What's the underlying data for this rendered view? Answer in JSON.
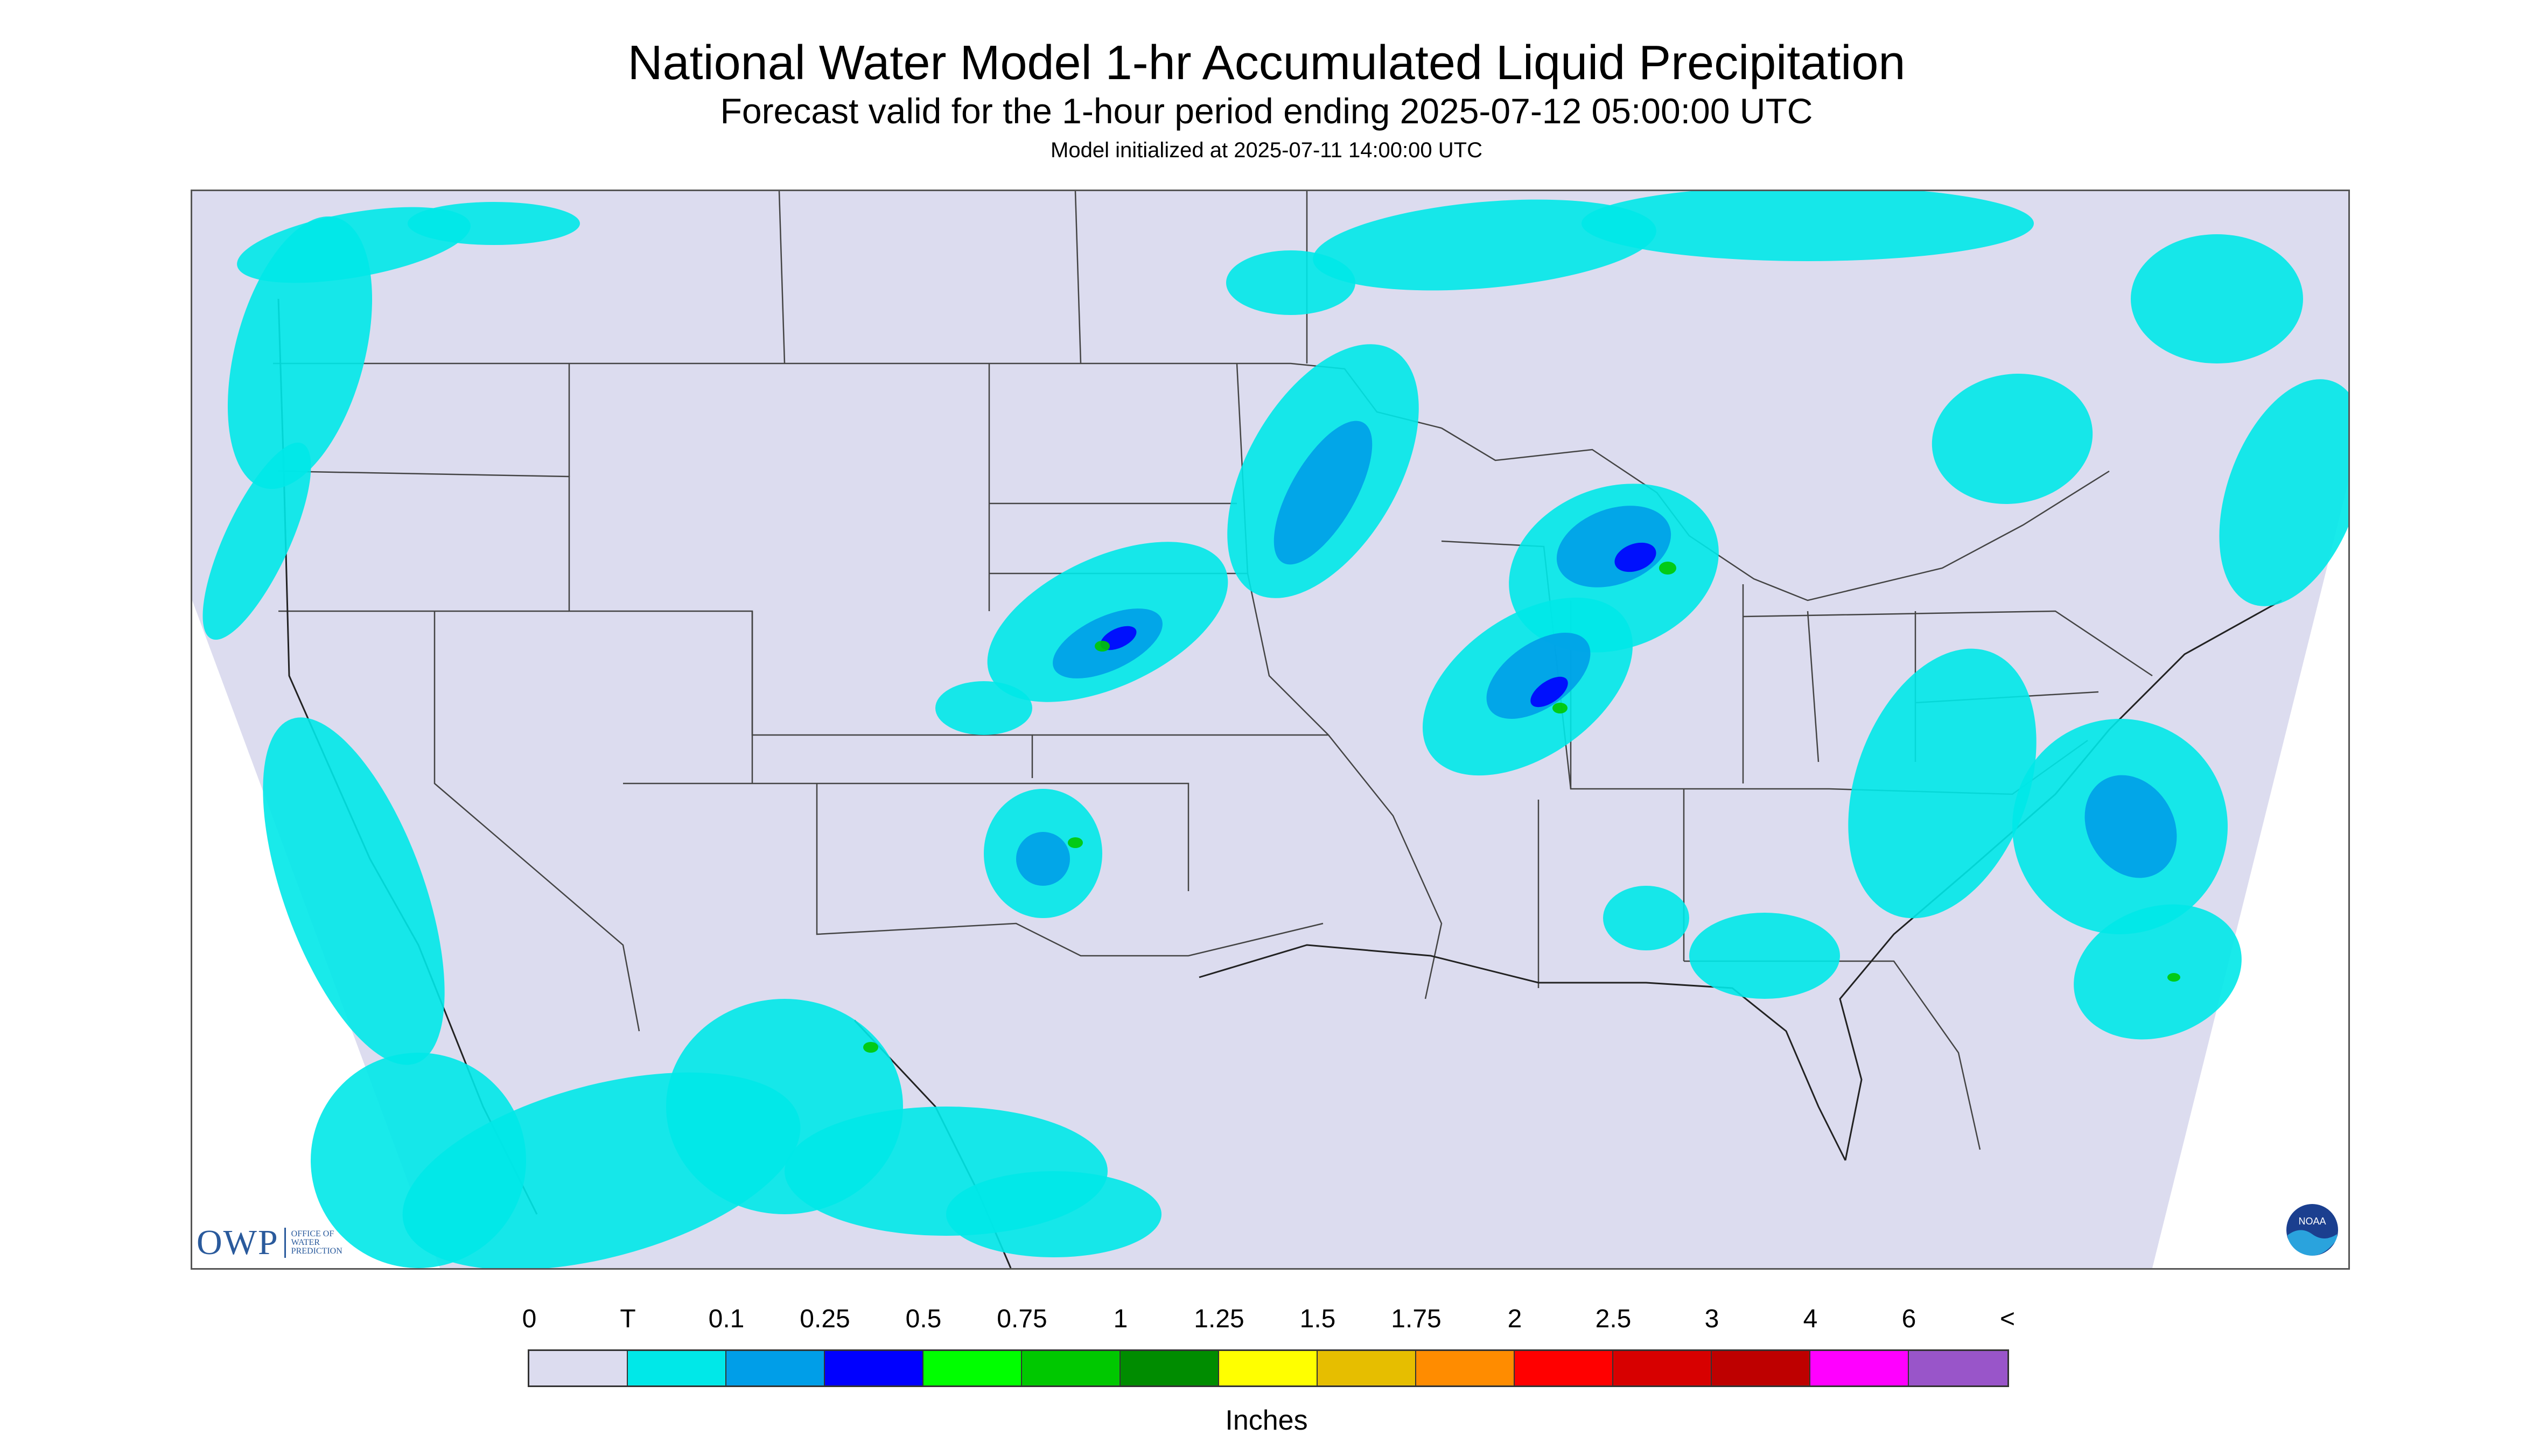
{
  "header": {
    "title": "National Water Model 1-hr Accumulated Liquid Precipitation",
    "subtitle": "Forecast valid for the 1-hour period ending 2025-07-12 05:00:00 UTC",
    "init": "Model initialized at 2025-07-11 14:00:00 UTC"
  },
  "logos": {
    "owp_abbrev": "OWP",
    "owp_line1": "OFFICE OF",
    "owp_line2": "WATER",
    "owp_line3": "PREDICTION",
    "noaa_text": "NOAA"
  },
  "legend": {
    "units": "Inches",
    "tick_labels": [
      "0",
      "T",
      "0.1",
      "0.25",
      "0.5",
      "0.75",
      "1",
      "1.25",
      "1.5",
      "1.75",
      "2",
      "2.5",
      "3",
      "4",
      "6",
      "<"
    ],
    "colors": [
      "#dcdcef",
      "#00e8e8",
      "#009ee8",
      "#0000ff",
      "#00ff00",
      "#00c800",
      "#008c00",
      "#ffff00",
      "#e6be00",
      "#ff8c00",
      "#ff0000",
      "#d70000",
      "#be0000",
      "#ff00ff",
      "#9955c9"
    ]
  },
  "map": {
    "domain_color": "#dcdcef",
    "outside_color": "#ffffff",
    "trace_color": "#00e8e8",
    "light_color": "#009ee8",
    "moderate_color": "#0000ff",
    "heavy_color": "#00c800"
  }
}
